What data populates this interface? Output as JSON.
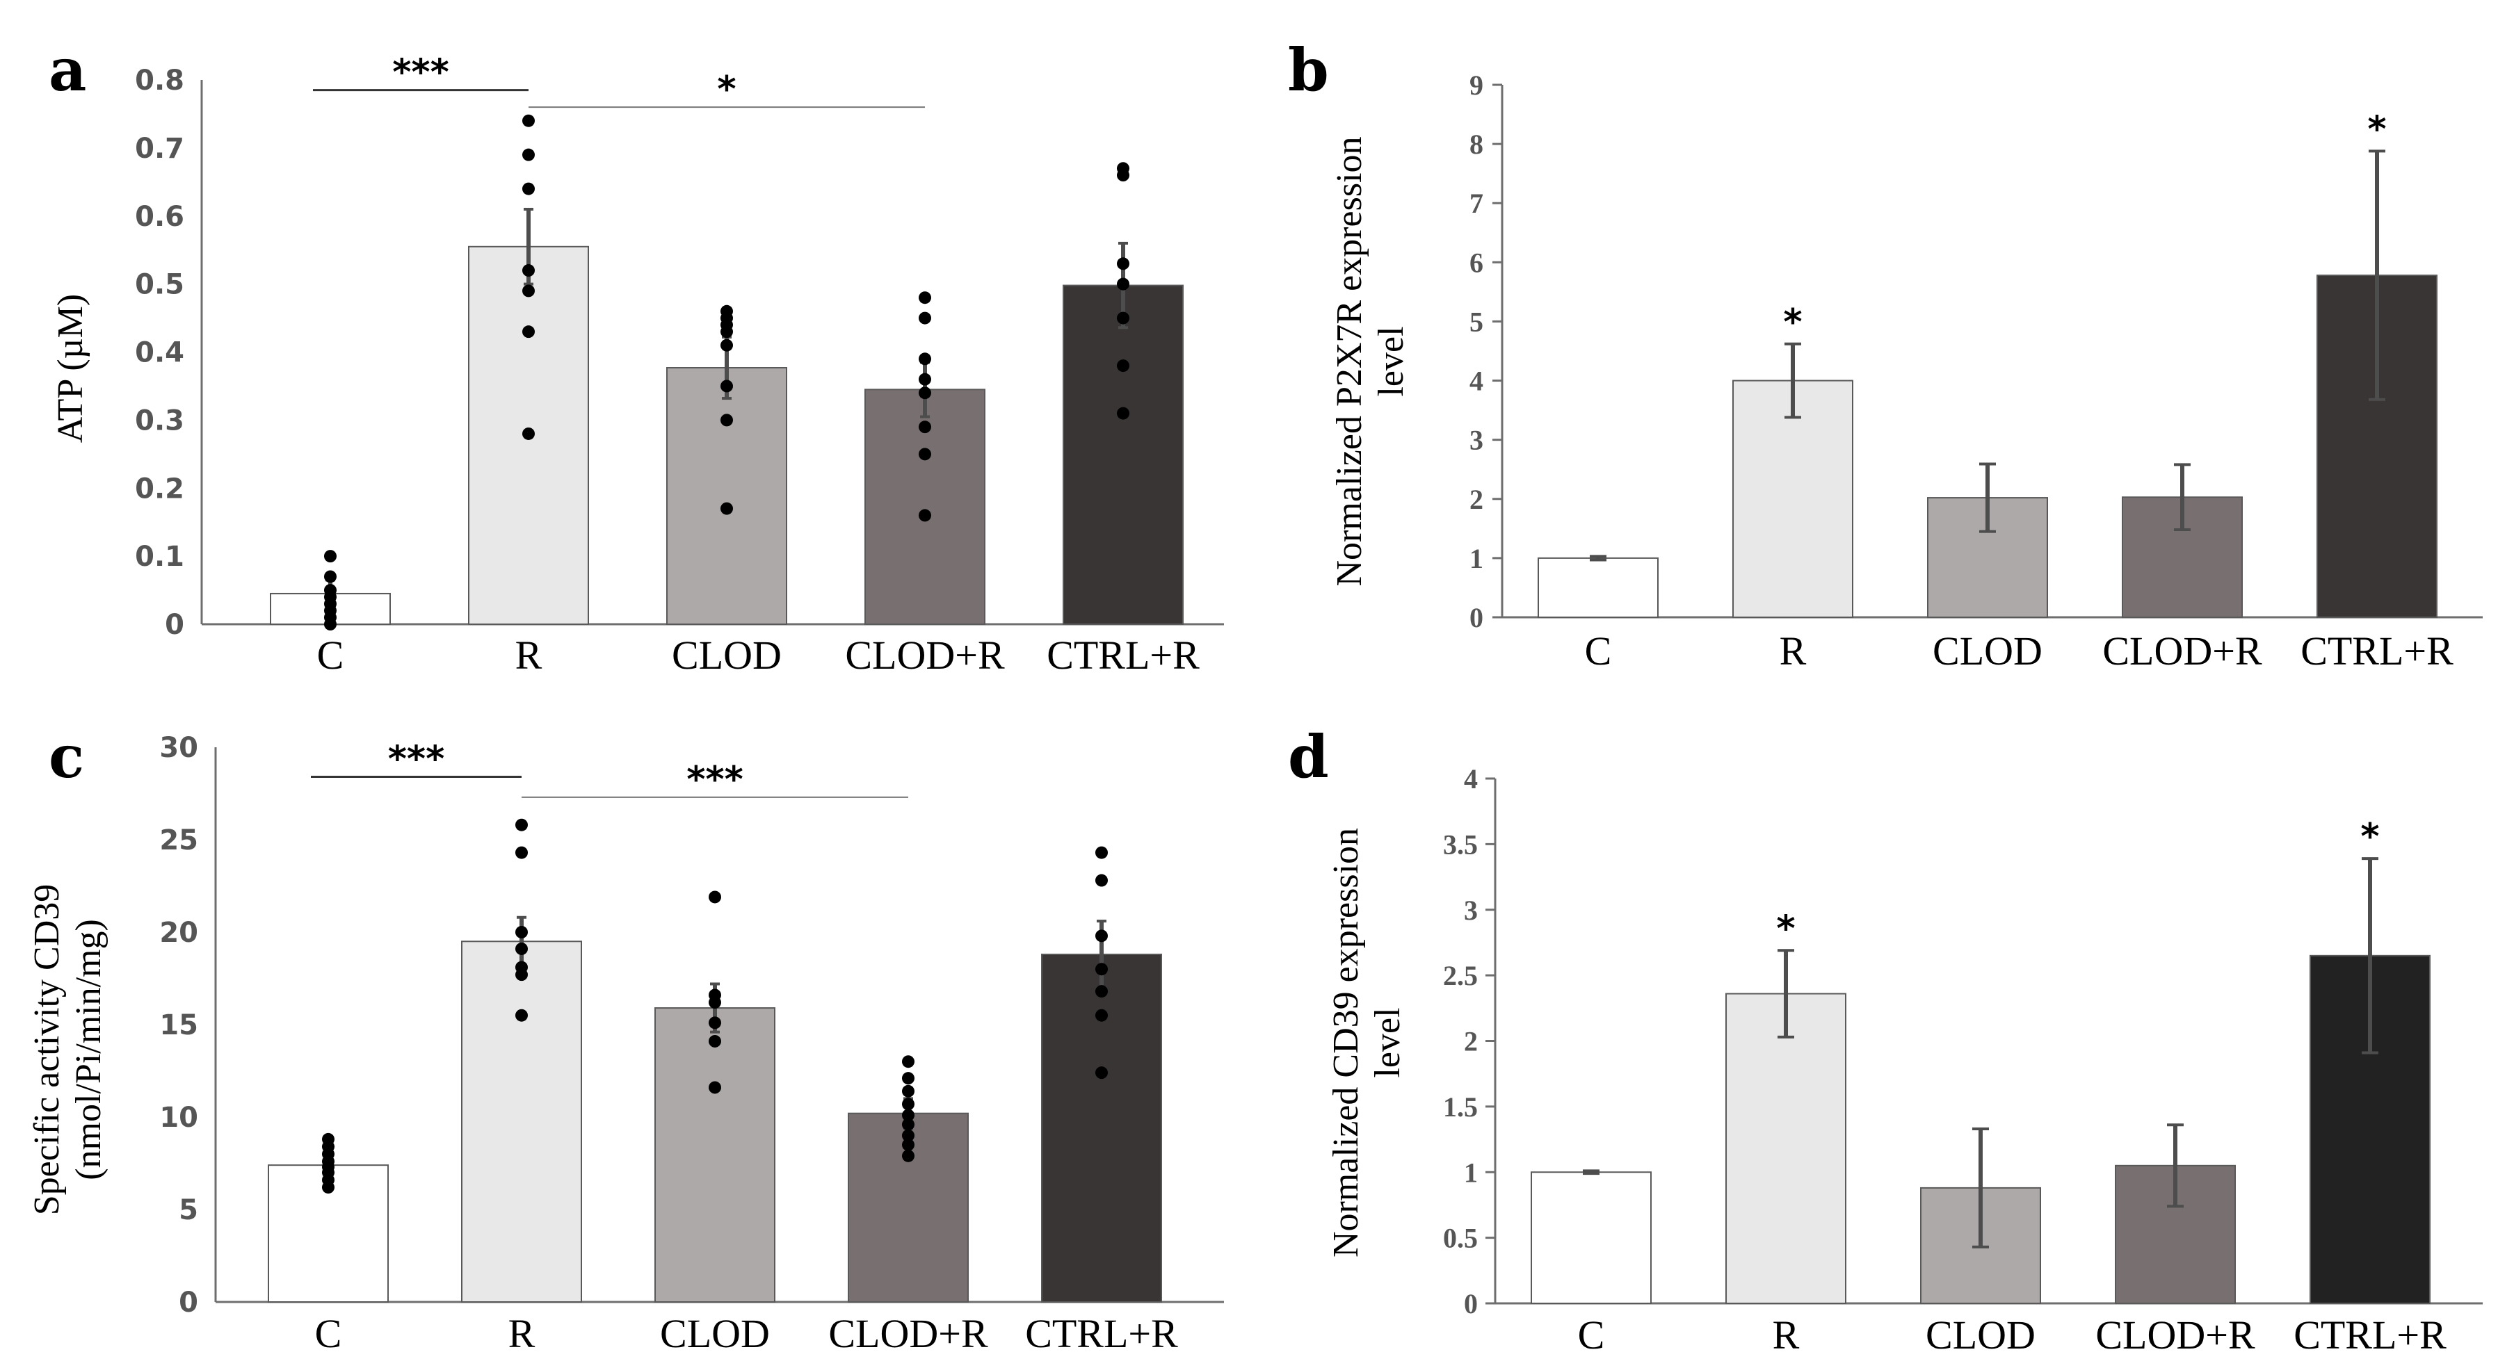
{
  "chart_data": [
    {
      "panel": "a",
      "type": "bar",
      "categories": [
        "C",
        "R",
        "CLOD",
        "CLOD+R",
        "CTRL+R"
      ],
      "values": [
        0.045,
        0.555,
        0.377,
        0.345,
        0.498
      ],
      "errors": [
        0.02,
        0.055,
        0.045,
        0.04,
        0.062
      ],
      "points": [
        [
          0.0,
          0.01,
          0.02,
          0.03,
          0.04,
          0.05,
          0.07,
          0.1
        ],
        [
          0.28,
          0.43,
          0.49,
          0.52,
          0.64,
          0.69,
          0.74
        ],
        [
          0.17,
          0.3,
          0.35,
          0.41,
          0.43,
          0.44,
          0.45,
          0.46
        ],
        [
          0.16,
          0.25,
          0.29,
          0.34,
          0.36,
          0.39,
          0.45,
          0.48
        ],
        [
          0.31,
          0.38,
          0.45,
          0.5,
          0.53,
          0.66,
          0.67
        ]
      ],
      "colors": [
        "#ffffff",
        "#e8e8e8",
        "#ada9a8",
        "#787070",
        "#393535"
      ],
      "ylabel": "ATP (µM)",
      "ylim": [
        0,
        0.8
      ],
      "yticks": [
        "0",
        "0.1",
        "0.2",
        "0.3",
        "0.4",
        "0.5",
        "0.6",
        "0.7",
        "0.8"
      ],
      "tick_font": "sans",
      "brackets": [
        {
          "from": 0,
          "to": 1,
          "label": "***",
          "level": 0.785,
          "style": "heavy"
        },
        {
          "from": 1,
          "to": 3,
          "label": "*",
          "level": 0.76,
          "style": "light"
        }
      ],
      "star_labels": []
    },
    {
      "panel": "b",
      "type": "bar",
      "categories": [
        "C",
        "R",
        "CLOD",
        "CLOD+R",
        "CTRL+R"
      ],
      "values": [
        1.0,
        4.0,
        2.02,
        2.03,
        5.78
      ],
      "errors": [
        0.03,
        0.62,
        0.57,
        0.55,
        2.1
      ],
      "points": [],
      "colors": [
        "#ffffff",
        "#e8e8e8",
        "#ada9a8",
        "#787070",
        "#393535"
      ],
      "ylabel_lines": [
        "Normalized P2X7R expression",
        "level"
      ],
      "ylim": [
        0,
        9
      ],
      "yticks": [
        "0",
        "1",
        "2",
        "3",
        "4",
        "5",
        "6",
        "7",
        "8",
        "9"
      ],
      "tick_font": "serif",
      "brackets": [],
      "star_labels": [
        {
          "index": 1,
          "label": "*"
        },
        {
          "index": 4,
          "label": "*"
        }
      ]
    },
    {
      "panel": "c",
      "type": "bar",
      "categories": [
        "C",
        "R",
        "CLOD",
        "CLOD+R",
        "CTRL+R"
      ],
      "values": [
        7.4,
        19.5,
        15.9,
        10.2,
        18.8
      ],
      "errors": [
        0.5,
        1.3,
        1.3,
        0.8,
        1.8
      ],
      "points": [
        [
          6.2,
          6.6,
          7.0,
          7.3,
          7.6,
          8.0,
          8.4,
          8.8
        ],
        [
          15.5,
          17.7,
          18.1,
          19.1,
          20.0,
          24.3,
          25.8
        ],
        [
          11.6,
          14.1,
          15.1,
          16.2,
          16.6,
          21.9
        ],
        [
          7.9,
          8.5,
          9.0,
          9.6,
          10.1,
          10.7,
          11.4,
          12.1,
          13.0
        ],
        [
          12.4,
          15.5,
          16.8,
          18.0,
          19.8,
          22.8,
          24.3
        ]
      ],
      "colors": [
        "#ffffff",
        "#e8e8e8",
        "#ada9a8",
        "#787070",
        "#393535"
      ],
      "ylabel_lines": [
        "Specific activity CD39",
        "(nmol/Pi/min/mg)"
      ],
      "ylim": [
        0,
        30
      ],
      "yticks": [
        "0",
        "5",
        "10",
        "15",
        "20",
        "25",
        "30"
      ],
      "tick_font": "sans",
      "brackets": [
        {
          "from": 0,
          "to": 1,
          "label": "***",
          "level": 28.4,
          "style": "heavy"
        },
        {
          "from": 1,
          "to": 3,
          "label": "***",
          "level": 27.3,
          "style": "light"
        }
      ],
      "star_labels": []
    },
    {
      "panel": "d",
      "type": "bar",
      "categories": [
        "C",
        "R",
        "CLOD",
        "CLOD+R",
        "CTRL+R"
      ],
      "values": [
        1.0,
        2.36,
        0.88,
        1.05,
        2.65
      ],
      "errors": [
        0.01,
        0.33,
        0.45,
        0.31,
        0.74
      ],
      "points": [],
      "colors": [
        "#ffffff",
        "#e8e8e8",
        "#ada9a8",
        "#787070",
        "#222222"
      ],
      "ylabel_lines": [
        "Normalized CD39 expression",
        "level"
      ],
      "ylim": [
        0,
        4
      ],
      "yticks": [
        "0",
        "0.5",
        "1",
        "1.5",
        "2",
        "2.5",
        "3",
        "3.5",
        "4"
      ],
      "tick_font": "serif",
      "brackets": [],
      "star_labels": [
        {
          "index": 1,
          "label": "*"
        },
        {
          "index": 4,
          "label": "*"
        }
      ]
    }
  ]
}
